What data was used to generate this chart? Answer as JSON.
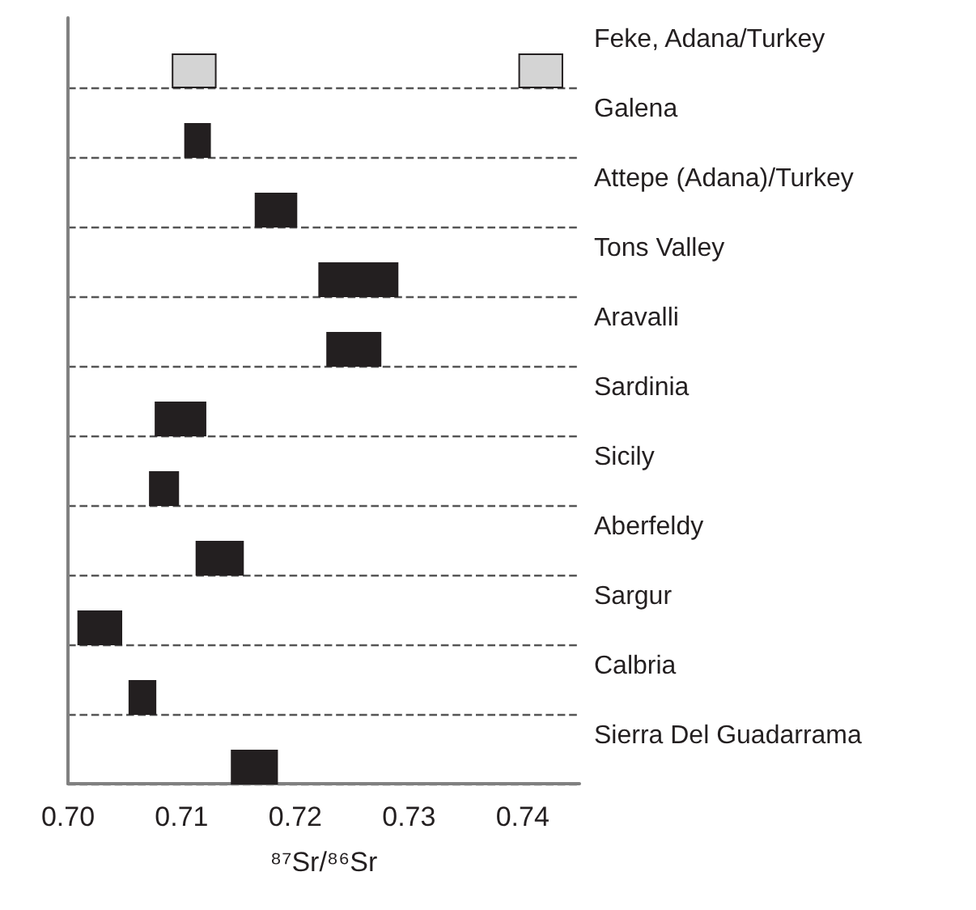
{
  "chart_data": {
    "type": "bar",
    "orientation": "horizontal",
    "xlabel": "⁸⁷Sr/⁸⁶Sr",
    "categories": [
      "Feke, Adana/Turkey",
      "Galena",
      "Attepe (Adana)/Turkey",
      "Tons Valley",
      "Aravalli",
      "Sardinia",
      "Sicily",
      "Aberfeldy",
      "Sargur",
      "Calbria",
      "Sierra Del Guadarrama"
    ],
    "series": [
      {
        "base": [
          0.7092,
          0.7103,
          0.7165,
          0.7221,
          0.7228,
          0.7077,
          0.7072,
          0.7113,
          0.7009,
          0.7054,
          0.7144
        ],
        "values": [
          0.0038,
          0.0022,
          0.0036,
          0.0069,
          0.0047,
          0.0044,
          0.0025,
          0.0041,
          0.0038,
          0.0023,
          0.004
        ],
        "colors": [
          "#d4d4d4",
          "#231f20",
          "#231f20",
          "#231f20",
          "#231f20",
          "#231f20",
          "#231f20",
          "#231f20",
          "#231f20",
          "#231f20",
          "#231f20"
        ]
      },
      {
        "base": [
          0.7397,
          null,
          null,
          null,
          null,
          null,
          null,
          null,
          null,
          null,
          null
        ],
        "values": [
          0.0038,
          null,
          null,
          null,
          null,
          null,
          null,
          null,
          null,
          null,
          null
        ],
        "color": "#d4d4d4"
      }
    ],
    "xlim": [
      0.7,
      0.745
    ],
    "xticks": [
      {
        "value": 0.7,
        "label": "0.70"
      },
      0.71,
      0.72,
      0.73,
      0.74
    ],
    "grid": "y",
    "line_style": "dashed"
  }
}
